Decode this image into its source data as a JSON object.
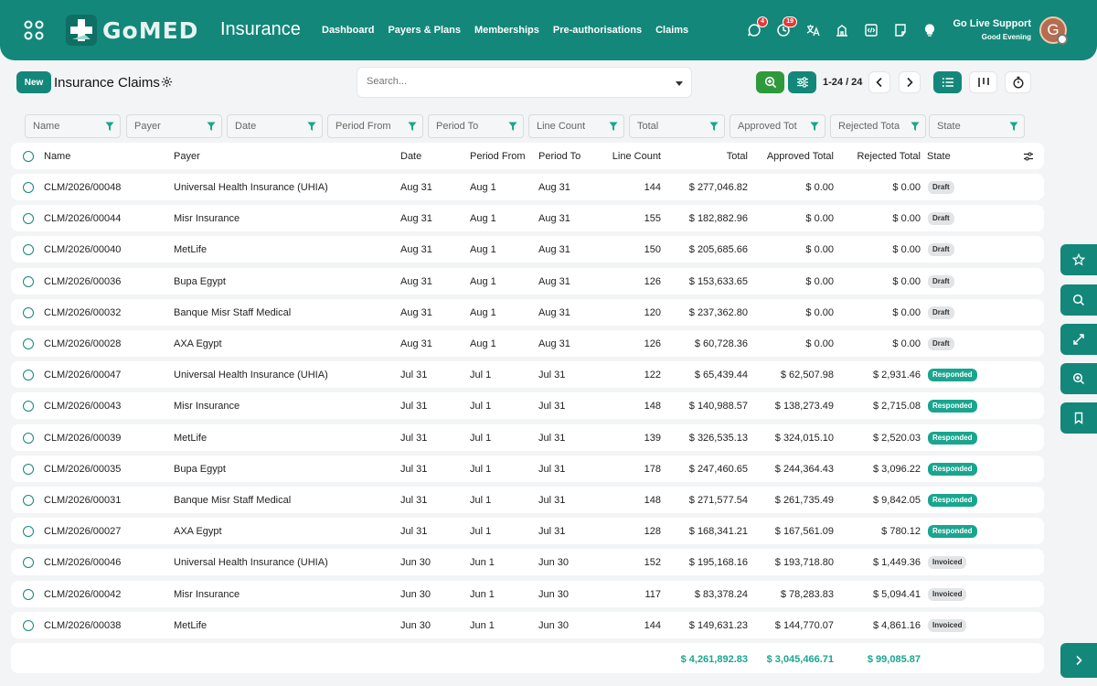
{
  "header": {
    "logo_text": "GoMED",
    "app_title": "Insurance",
    "nav": [
      "Dashboard",
      "Payers & Plans",
      "Memberships",
      "Pre-authorisations",
      "Claims"
    ],
    "icons": [
      {
        "name": "chat-icon",
        "badge": "4"
      },
      {
        "name": "activity-clock-icon",
        "badge": "19"
      },
      {
        "name": "translate-icon",
        "badge": ""
      },
      {
        "name": "building-icon",
        "badge": ""
      },
      {
        "name": "code-window-icon",
        "badge": ""
      },
      {
        "name": "notes-icon",
        "badge": ""
      },
      {
        "name": "lightbulb-icon",
        "badge": ""
      }
    ],
    "support_name": "Go Live Support",
    "greeting": "Good Evening",
    "avatar_letter": "G"
  },
  "controls": {
    "new_label": "New",
    "title": "Insurance Claims",
    "search_placeholder": "Search...",
    "pager": "1-24 / 24"
  },
  "filters": [
    "Name",
    "Payer",
    "Date",
    "Period From",
    "Period To",
    "Line Count",
    "Total",
    "Approved Tot",
    "Rejected Tota",
    "State"
  ],
  "columns": {
    "name": "Name",
    "payer": "Payer",
    "date": "Date",
    "period_from": "Period From",
    "period_to": "Period To",
    "line_count": "Line Count",
    "total": "Total",
    "approved": "Approved Total",
    "rejected": "Rejected Total",
    "state": "State"
  },
  "rows": [
    {
      "name": "CLM/2026/00048",
      "payer": "Universal Health Insurance (UHIA)",
      "date": "Aug 31",
      "from": "Aug 1",
      "to": "Aug 31",
      "lines": "144",
      "total": "$ 277,046.82",
      "approved": "$ 0.00",
      "rejected": "$ 0.00",
      "state": "Draft"
    },
    {
      "name": "CLM/2026/00044",
      "payer": "Misr Insurance",
      "date": "Aug 31",
      "from": "Aug 1",
      "to": "Aug 31",
      "lines": "155",
      "total": "$ 182,882.96",
      "approved": "$ 0.00",
      "rejected": "$ 0.00",
      "state": "Draft"
    },
    {
      "name": "CLM/2026/00040",
      "payer": "MetLife",
      "date": "Aug 31",
      "from": "Aug 1",
      "to": "Aug 31",
      "lines": "150",
      "total": "$ 205,685.66",
      "approved": "$ 0.00",
      "rejected": "$ 0.00",
      "state": "Draft"
    },
    {
      "name": "CLM/2026/00036",
      "payer": "Bupa Egypt",
      "date": "Aug 31",
      "from": "Aug 1",
      "to": "Aug 31",
      "lines": "126",
      "total": "$ 153,633.65",
      "approved": "$ 0.00",
      "rejected": "$ 0.00",
      "state": "Draft"
    },
    {
      "name": "CLM/2026/00032",
      "payer": "Banque Misr Staff Medical",
      "date": "Aug 31",
      "from": "Aug 1",
      "to": "Aug 31",
      "lines": "120",
      "total": "$ 237,362.80",
      "approved": "$ 0.00",
      "rejected": "$ 0.00",
      "state": "Draft"
    },
    {
      "name": "CLM/2026/00028",
      "payer": "AXA Egypt",
      "date": "Aug 31",
      "from": "Aug 1",
      "to": "Aug 31",
      "lines": "126",
      "total": "$ 60,728.36",
      "approved": "$ 0.00",
      "rejected": "$ 0.00",
      "state": "Draft"
    },
    {
      "name": "CLM/2026/00047",
      "payer": "Universal Health Insurance (UHIA)",
      "date": "Jul 31",
      "from": "Jul 1",
      "to": "Jul 31",
      "lines": "122",
      "total": "$ 65,439.44",
      "approved": "$ 62,507.98",
      "rejected": "$ 2,931.46",
      "state": "Responded"
    },
    {
      "name": "CLM/2026/00043",
      "payer": "Misr Insurance",
      "date": "Jul 31",
      "from": "Jul 1",
      "to": "Jul 31",
      "lines": "148",
      "total": "$ 140,988.57",
      "approved": "$ 138,273.49",
      "rejected": "$ 2,715.08",
      "state": "Responded"
    },
    {
      "name": "CLM/2026/00039",
      "payer": "MetLife",
      "date": "Jul 31",
      "from": "Jul 1",
      "to": "Jul 31",
      "lines": "139",
      "total": "$ 326,535.13",
      "approved": "$ 324,015.10",
      "rejected": "$ 2,520.03",
      "state": "Responded"
    },
    {
      "name": "CLM/2026/00035",
      "payer": "Bupa Egypt",
      "date": "Jul 31",
      "from": "Jul 1",
      "to": "Jul 31",
      "lines": "178",
      "total": "$ 247,460.65",
      "approved": "$ 244,364.43",
      "rejected": "$ 3,096.22",
      "state": "Responded"
    },
    {
      "name": "CLM/2026/00031",
      "payer": "Banque Misr Staff Medical",
      "date": "Jul 31",
      "from": "Jul 1",
      "to": "Jul 31",
      "lines": "148",
      "total": "$ 271,577.54",
      "approved": "$ 261,735.49",
      "rejected": "$ 9,842.05",
      "state": "Responded"
    },
    {
      "name": "CLM/2026/00027",
      "payer": "AXA Egypt",
      "date": "Jul 31",
      "from": "Jul 1",
      "to": "Jul 31",
      "lines": "128",
      "total": "$ 168,341.21",
      "approved": "$ 167,561.09",
      "rejected": "$ 780.12",
      "state": "Responded"
    },
    {
      "name": "CLM/2026/00046",
      "payer": "Universal Health Insurance (UHIA)",
      "date": "Jun 30",
      "from": "Jun 1",
      "to": "Jun 30",
      "lines": "152",
      "total": "$ 195,168.16",
      "approved": "$ 193,718.80",
      "rejected": "$ 1,449.36",
      "state": "Invoiced"
    },
    {
      "name": "CLM/2026/00042",
      "payer": "Misr Insurance",
      "date": "Jun 30",
      "from": "Jun 1",
      "to": "Jun 30",
      "lines": "117",
      "total": "$ 83,378.24",
      "approved": "$ 78,283.83",
      "rejected": "$ 5,094.41",
      "state": "Invoiced"
    },
    {
      "name": "CLM/2026/00038",
      "payer": "MetLife",
      "date": "Jun 30",
      "from": "Jun 1",
      "to": "Jun 30",
      "lines": "144",
      "total": "$ 149,631.23",
      "approved": "$ 144,770.07",
      "rejected": "$ 4,861.16",
      "state": "Invoiced"
    }
  ],
  "totals": {
    "total": "$ 4,261,892.83",
    "approved": "$ 3,045,466.71",
    "rejected": "$ 99,085.87"
  },
  "side_panel": [
    "star-icon",
    "search-icon",
    "expand-icon",
    "zoom-in-icon",
    "bookmark-icon",
    "chevron-right-icon"
  ],
  "colors": {
    "brand": "#13877a",
    "responded": "#1aa58f",
    "badge": "#e53935"
  }
}
